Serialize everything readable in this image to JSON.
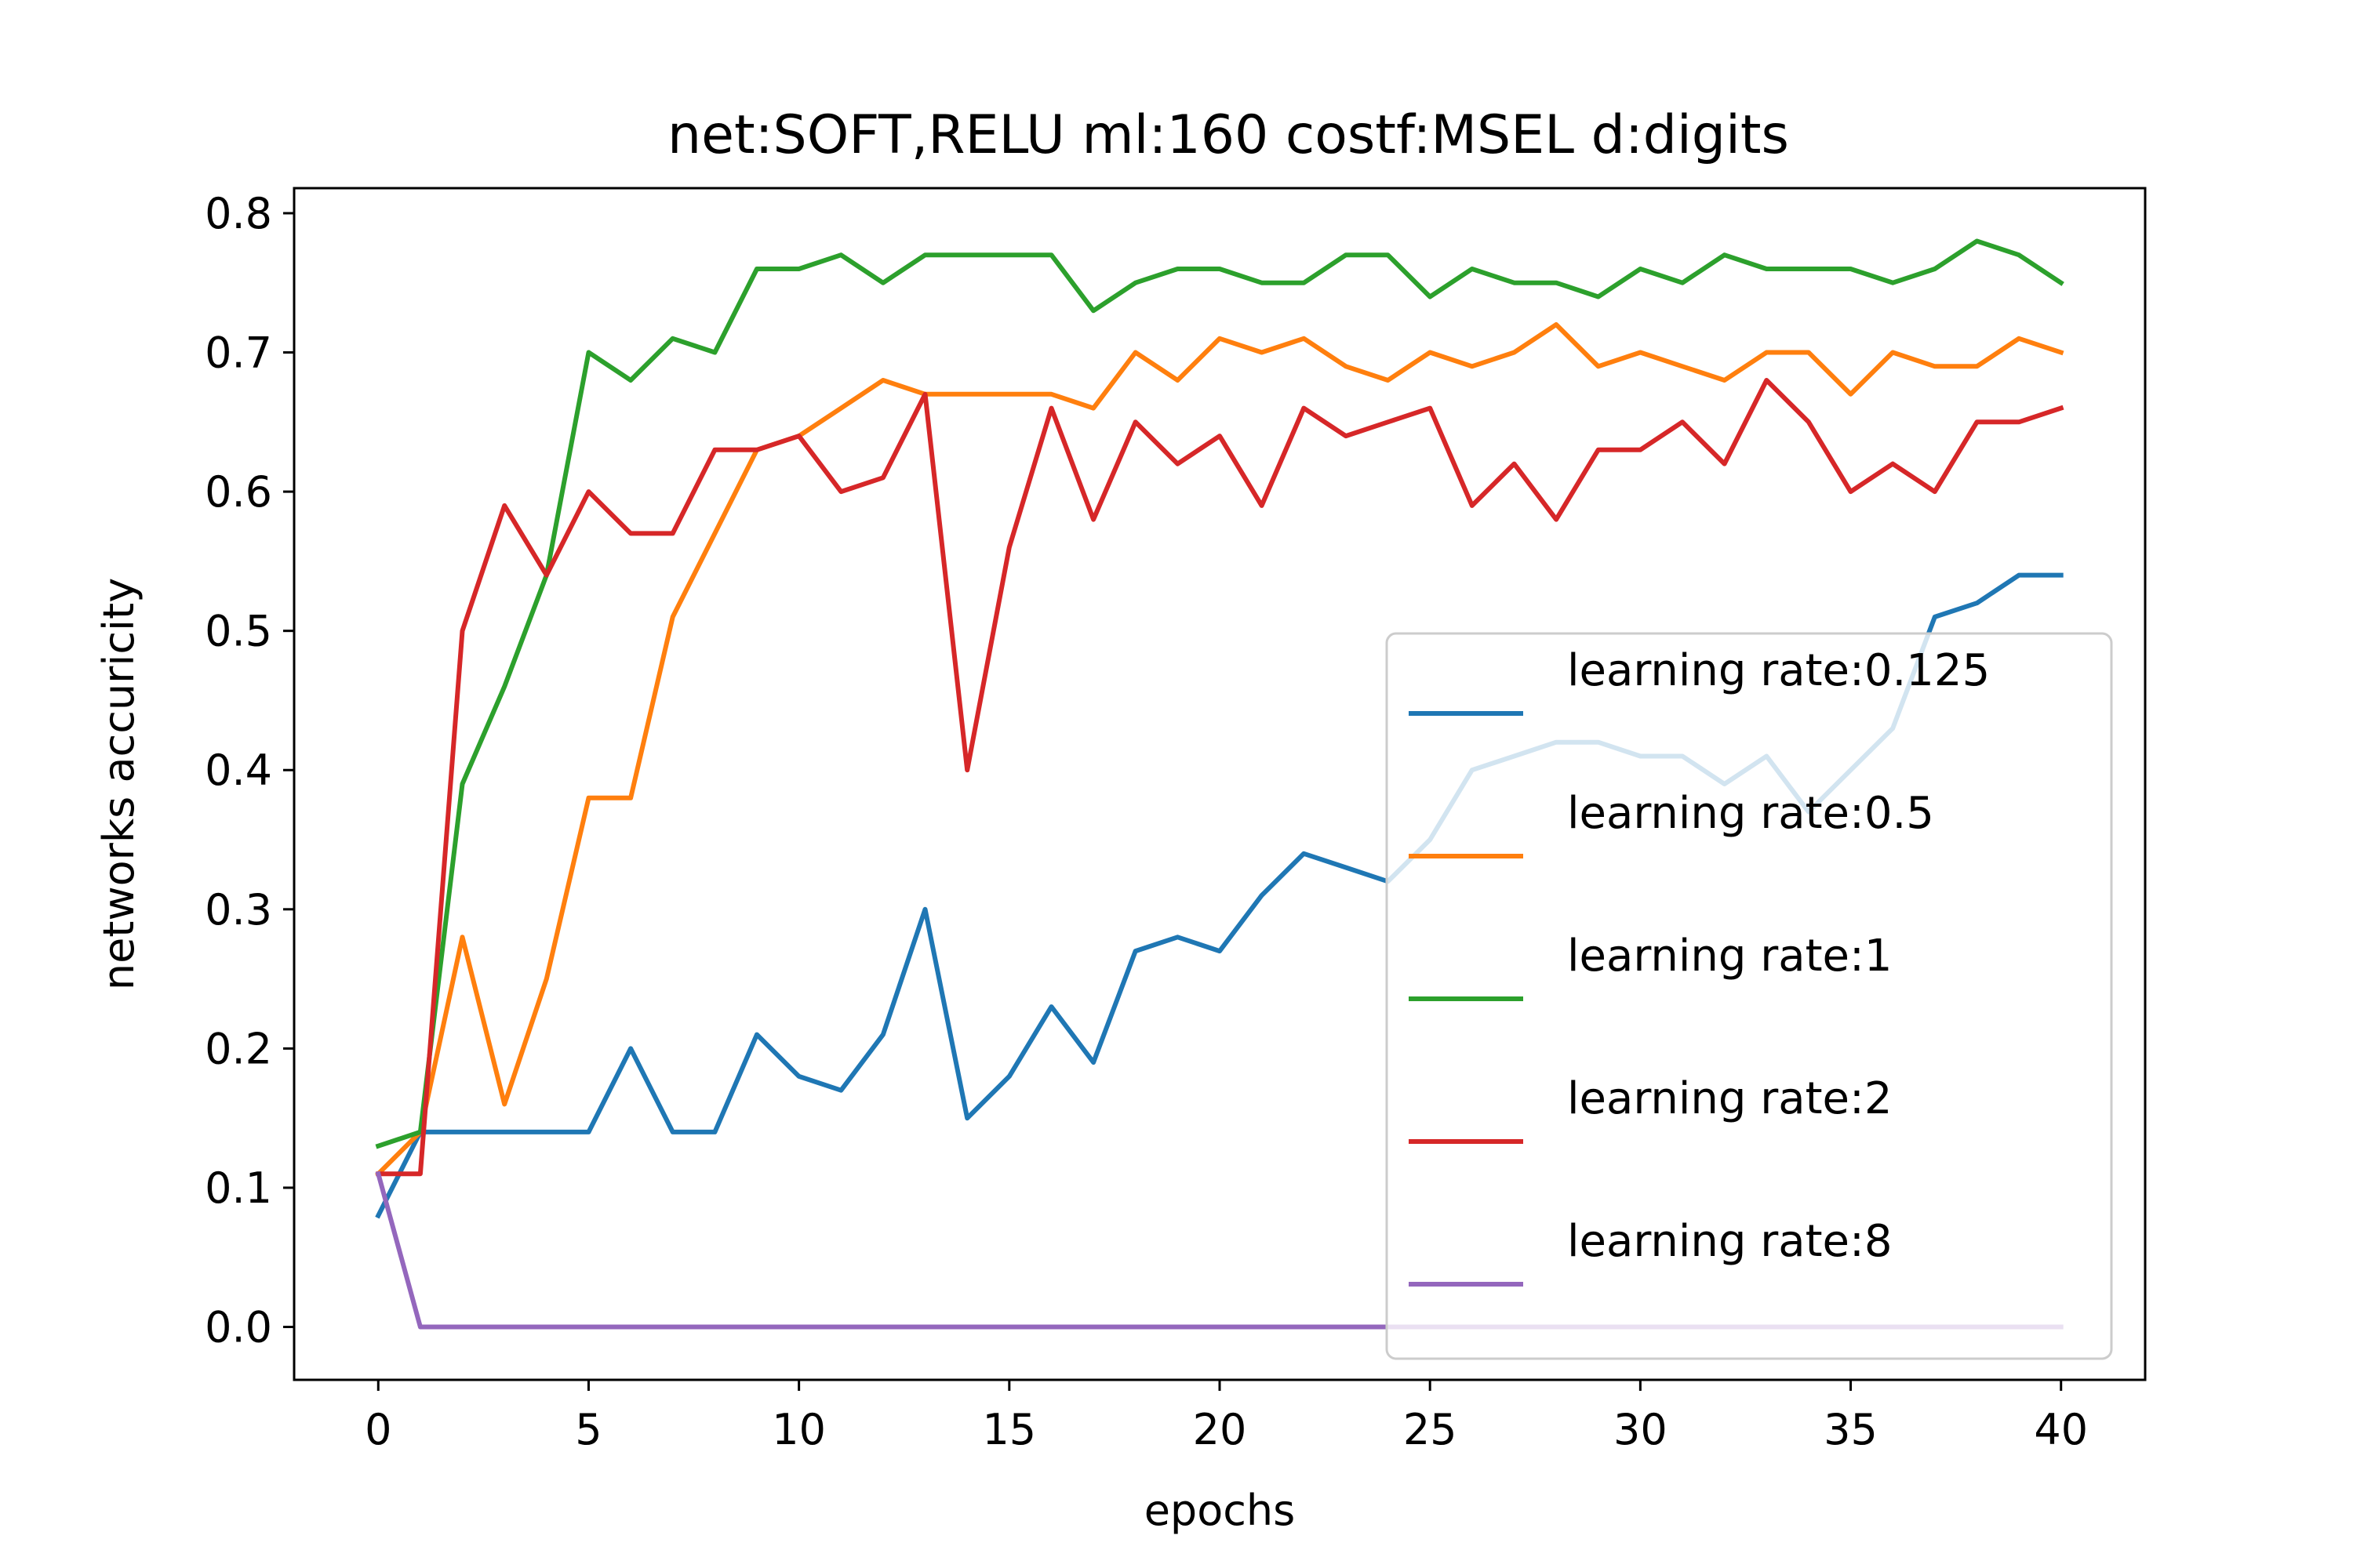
{
  "chart_data": {
    "type": "line",
    "title": "net:SOFT,RELU ml:160 costf:MSEL d:digits",
    "xlabel": "epochs",
    "ylabel": "networks accuricity",
    "xlim": [
      -2,
      42
    ],
    "ylim": [
      -0.038,
      0.818
    ],
    "xticks": [
      0,
      5,
      10,
      15,
      20,
      25,
      30,
      35,
      40
    ],
    "xtick_labels": [
      "0",
      "5",
      "10",
      "15",
      "20",
      "25",
      "30",
      "35",
      "40"
    ],
    "yticks": [
      0.0,
      0.1,
      0.2,
      0.3,
      0.4,
      0.5,
      0.6,
      0.7,
      0.8
    ],
    "ytick_labels": [
      "0.0",
      "0.1",
      "0.2",
      "0.3",
      "0.4",
      "0.5",
      "0.6",
      "0.7",
      "0.8"
    ],
    "grid": false,
    "legend_position": "center-right",
    "x": [
      0,
      1,
      2,
      3,
      4,
      5,
      6,
      7,
      8,
      9,
      10,
      11,
      12,
      13,
      14,
      15,
      16,
      17,
      18,
      19,
      20,
      21,
      22,
      23,
      24,
      25,
      26,
      27,
      28,
      29,
      30,
      31,
      32,
      33,
      34,
      35,
      36,
      37,
      38,
      39,
      40
    ],
    "series": [
      {
        "name": "learning rate:0.125",
        "color": "#1f77b4",
        "values": [
          0.08,
          0.14,
          0.14,
          0.14,
          0.14,
          0.14,
          0.2,
          0.14,
          0.14,
          0.21,
          0.18,
          0.17,
          0.21,
          0.3,
          0.15,
          0.18,
          0.23,
          0.19,
          0.27,
          0.28,
          0.27,
          0.31,
          0.34,
          0.33,
          0.32,
          0.35,
          0.4,
          0.41,
          0.42,
          0.42,
          0.41,
          0.41,
          0.39,
          0.41,
          0.37,
          0.4,
          0.43,
          0.51,
          0.52,
          0.54,
          0.54
        ]
      },
      {
        "name": "learning rate:0.5",
        "color": "#ff7f0e",
        "values": [
          0.11,
          0.14,
          0.28,
          0.16,
          0.25,
          0.38,
          0.38,
          0.51,
          0.57,
          0.63,
          0.64,
          0.66,
          0.68,
          0.67,
          0.67,
          0.67,
          0.67,
          0.66,
          0.7,
          0.68,
          0.71,
          0.7,
          0.71,
          0.69,
          0.68,
          0.7,
          0.69,
          0.7,
          0.72,
          0.69,
          0.7,
          0.69,
          0.68,
          0.7,
          0.7,
          0.67,
          0.7,
          0.69,
          0.69,
          0.71,
          0.7
        ]
      },
      {
        "name": "learning rate:1",
        "color": "#2ca02c",
        "values": [
          0.13,
          0.14,
          0.39,
          0.46,
          0.54,
          0.7,
          0.68,
          0.71,
          0.7,
          0.76,
          0.76,
          0.77,
          0.75,
          0.77,
          0.77,
          0.77,
          0.77,
          0.73,
          0.75,
          0.76,
          0.76,
          0.75,
          0.75,
          0.77,
          0.77,
          0.74,
          0.76,
          0.75,
          0.75,
          0.74,
          0.76,
          0.75,
          0.77,
          0.76,
          0.76,
          0.76,
          0.75,
          0.76,
          0.78,
          0.77,
          0.75
        ]
      },
      {
        "name": "learning rate:2",
        "color": "#d62728",
        "values": [
          0.11,
          0.11,
          0.5,
          0.59,
          0.54,
          0.6,
          0.57,
          0.57,
          0.63,
          0.63,
          0.64,
          0.6,
          0.61,
          0.67,
          0.4,
          0.56,
          0.66,
          0.58,
          0.65,
          0.62,
          0.64,
          0.59,
          0.66,
          0.64,
          0.65,
          0.66,
          0.59,
          0.62,
          0.58,
          0.63,
          0.63,
          0.65,
          0.62,
          0.68,
          0.65,
          0.6,
          0.62,
          0.6,
          0.65,
          0.65,
          0.66
        ]
      },
      {
        "name": "learning rate:8",
        "color": "#9467bd",
        "values": [
          0.11,
          0.0,
          0.0,
          0.0,
          0.0,
          0.0,
          0.0,
          0.0,
          0.0,
          0.0,
          0.0,
          0.0,
          0.0,
          0.0,
          0.0,
          0.0,
          0.0,
          0.0,
          0.0,
          0.0,
          0.0,
          0.0,
          0.0,
          0.0,
          0.0,
          0.0,
          0.0,
          0.0,
          0.0,
          0.0,
          0.0,
          0.0,
          0.0,
          0.0,
          0.0,
          0.0,
          0.0,
          0.0,
          0.0,
          0.0,
          0.0
        ]
      }
    ]
  }
}
